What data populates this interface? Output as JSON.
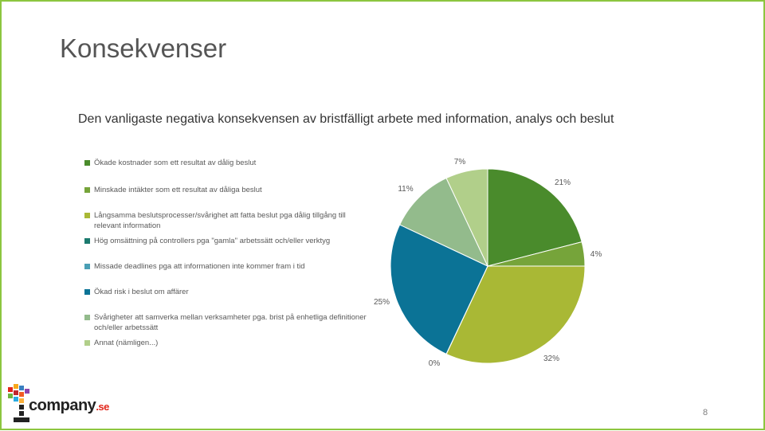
{
  "slide": {
    "title": "Konsekvenser",
    "page_number": "8"
  },
  "logo": {
    "name": "company",
    "suffix": ".se"
  },
  "chart_data": {
    "type": "pie",
    "title": "Den vanligaste negativa konsekvensen av bristfälligt arbete med information, analys och beslut",
    "legend_placement": "left",
    "slices": [
      {
        "label": "Ökade kostnader som ett resultat av dålig beslut",
        "value": 21,
        "display": "21%",
        "color": "#4a8b2c"
      },
      {
        "label": "Minskade intäkter som ett resultat av dåliga beslut",
        "value": 4,
        "display": "4%",
        "color": "#76a43a"
      },
      {
        "label": "Långsamma beslutsprocesser/svårighet att fatta beslut pga dålig tillgång till relevant information",
        "value": 32,
        "display": "32%",
        "color": "#a9b835"
      },
      {
        "label": "Hög omsättning på controllers pga \"gamla\" arbetssätt och/eller verktyg",
        "value": 0.01,
        "display": "0%",
        "color": "#1b7a6e"
      },
      {
        "label": "Missade deadlines pga att informationen inte kommer fram i tid",
        "value": 0.01,
        "display": "",
        "color": "#4a9fb5"
      },
      {
        "label": "Ökad risk i beslut om affärer",
        "value": 25,
        "display": "25%",
        "color": "#0b7396"
      },
      {
        "label": "Svårigheter att samverka mellan verksamheter pga. brist på enhetliga definitioner och/eller arbetssätt",
        "value": 11,
        "display": "11%",
        "color": "#93bb8c"
      },
      {
        "label": "Annat (nämligen...)",
        "value": 7,
        "display": "7%",
        "color": "#b1cf8a"
      }
    ]
  }
}
